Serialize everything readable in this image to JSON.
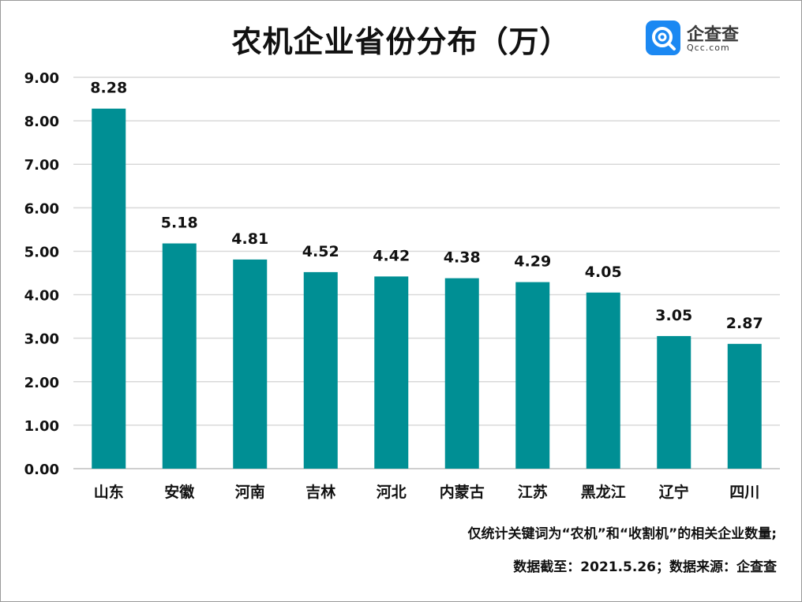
{
  "chart_data": {
    "type": "bar",
    "title": "农机企业省份分布（万）",
    "categories": [
      "山东",
      "安徽",
      "河南",
      "吉林",
      "河北",
      "内蒙古",
      "江苏",
      "黑龙江",
      "辽宁",
      "四川"
    ],
    "values": [
      8.28,
      5.18,
      4.81,
      4.52,
      4.42,
      4.38,
      4.29,
      4.05,
      3.05,
      2.87
    ],
    "data_labels": [
      "8.28",
      "5.18",
      "4.81",
      "4.52",
      "4.42",
      "4.38",
      "4.29",
      "4.05",
      "3.05",
      "2.87"
    ],
    "y_ticks": [
      "0.00",
      "1.00",
      "2.00",
      "3.00",
      "4.00",
      "5.00",
      "6.00",
      "7.00",
      "8.00",
      "9.00"
    ],
    "ylim": [
      0,
      9
    ],
    "grid": true,
    "xlabel": "",
    "ylabel": "",
    "bar_color": "#008f94",
    "grid_color": "#d9d9d9"
  },
  "logo": {
    "name": "企查查",
    "domain": "Qcc.com",
    "color": "#1b88f2"
  },
  "notes": {
    "line1": "仅统计关键词为“农机”和“收割机”的相关企业数量;",
    "line2": "数据截至：2021.5.26；数据来源：企查查"
  }
}
